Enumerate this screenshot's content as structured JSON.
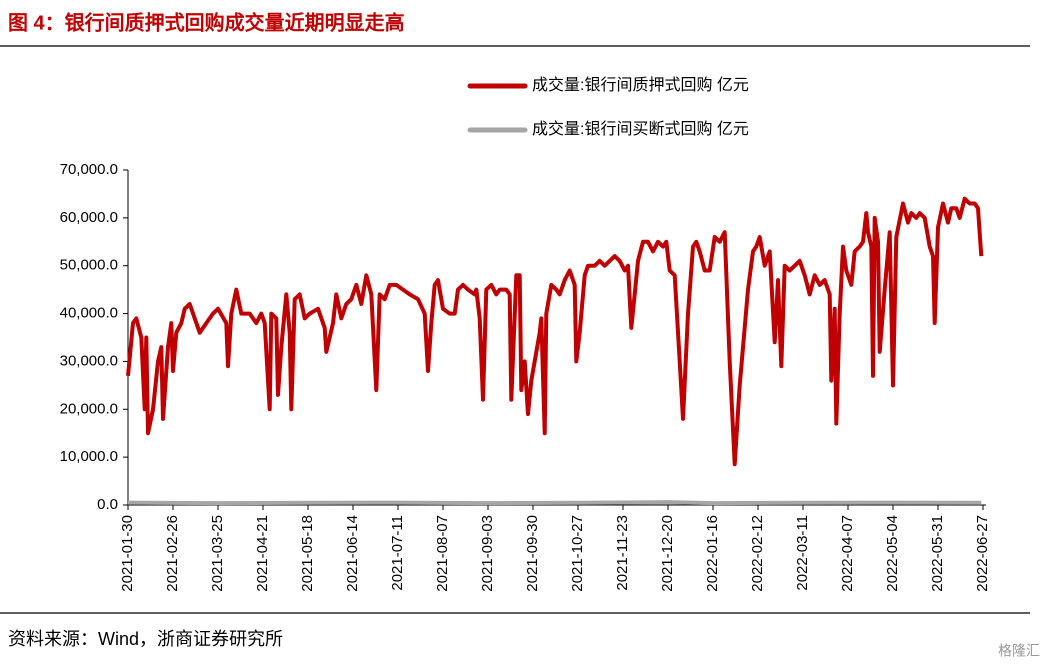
{
  "chart_data": {
    "type": "line",
    "title": "图 4：银行间质押式回购成交量近期明显走高",
    "source": "资料来源：Wind，浙商证券研究所",
    "watermark": "格隆汇",
    "legend": "top-right",
    "xlim": [
      "2021-01-30",
      "2022-06-27"
    ],
    "xticks": [
      "2021-01-30",
      "2021-02-26",
      "2021-03-25",
      "2021-04-21",
      "2021-05-18",
      "2021-06-14",
      "2021-07-11",
      "2021-08-07",
      "2021-09-03",
      "2021-09-30",
      "2021-10-27",
      "2021-11-23",
      "2021-12-20",
      "2022-01-16",
      "2022-02-12",
      "2022-03-11",
      "2022-04-07",
      "2022-05-04",
      "2022-05-31",
      "2022-06-27"
    ],
    "ylim": [
      0,
      70000
    ],
    "yticks": [
      {
        "value": 0,
        "label": "0.0"
      },
      {
        "value": 10000,
        "label": "10,000.0"
      },
      {
        "value": 20000,
        "label": "20,000.0"
      },
      {
        "value": 30000,
        "label": "30,000.0"
      },
      {
        "value": 40000,
        "label": "40,000.0"
      },
      {
        "value": 50000,
        "label": "50,000.0"
      },
      {
        "value": 60000,
        "label": "60,000.0"
      },
      {
        "value": 70000,
        "label": "70,000.0"
      }
    ],
    "series": [
      {
        "name": "成交量:银行间质押式回购 亿元",
        "color": "#c00000",
        "x": [
          "2021-01-30",
          "2021-02-02",
          "2021-02-04",
          "2021-02-07",
          "2021-02-09",
          "2021-02-10",
          "2021-02-11",
          "2021-02-14",
          "2021-02-17",
          "2021-02-19",
          "2021-02-20",
          "2021-02-23",
          "2021-02-25",
          "2021-02-26",
          "2021-02-28",
          "2021-03-03",
          "2021-03-05",
          "2021-03-08",
          "2021-03-11",
          "2021-03-14",
          "2021-03-18",
          "2021-03-22",
          "2021-03-25",
          "2021-03-30",
          "2021-03-31",
          "2021-04-02",
          "2021-04-05",
          "2021-04-08",
          "2021-04-13",
          "2021-04-17",
          "2021-04-20",
          "2021-04-22",
          "2021-04-25",
          "2021-04-26",
          "2021-04-29",
          "2021-04-30",
          "2021-05-02",
          "2021-05-05",
          "2021-05-07",
          "2021-05-08",
          "2021-05-10",
          "2021-05-13",
          "2021-05-16",
          "2021-05-19",
          "2021-05-24",
          "2021-05-28",
          "2021-05-29",
          "2021-06-02",
          "2021-06-04",
          "2021-06-07",
          "2021-06-10",
          "2021-06-13",
          "2021-06-16",
          "2021-06-19",
          "2021-06-22",
          "2021-06-25",
          "2021-06-28",
          "2021-06-30",
          "2021-07-03",
          "2021-07-06",
          "2021-07-10",
          "2021-07-14",
          "2021-07-18",
          "2021-07-23",
          "2021-07-27",
          "2021-07-29",
          "2021-07-31",
          "2021-08-02",
          "2021-08-04",
          "2021-08-07",
          "2021-08-11",
          "2021-08-14",
          "2021-08-16",
          "2021-08-19",
          "2021-08-22",
          "2021-08-26",
          "2021-08-27",
          "2021-08-29",
          "2021-08-31",
          "2021-09-02",
          "2021-09-05",
          "2021-09-08",
          "2021-09-10",
          "2021-09-14",
          "2021-09-16",
          "2021-09-17",
          "2021-09-20",
          "2021-09-22",
          "2021-09-23",
          "2021-09-25",
          "2021-09-27",
          "2021-09-29",
          "2021-10-04",
          "2021-10-05",
          "2021-10-07",
          "2021-10-08",
          "2021-10-11",
          "2021-10-14",
          "2021-10-16",
          "2021-10-19",
          "2021-10-22",
          "2021-10-25",
          "2021-10-26",
          "2021-10-28",
          "2021-10-31",
          "2021-11-02",
          "2021-11-06",
          "2021-11-09",
          "2021-11-12",
          "2021-11-15",
          "2021-11-18",
          "2021-11-21",
          "2021-11-24",
          "2021-11-26",
          "2021-11-28",
          "2021-11-30",
          "2021-12-02",
          "2021-12-05",
          "2021-12-08",
          "2021-12-11",
          "2021-12-14",
          "2021-12-17",
          "2021-12-19",
          "2021-12-21",
          "2021-12-24",
          "2021-12-27",
          "2021-12-29",
          "2022-01-01",
          "2022-01-04",
          "2022-01-06",
          "2022-01-08",
          "2022-01-11",
          "2022-01-14",
          "2022-01-17",
          "2022-01-20",
          "2022-01-23",
          "2022-01-26",
          "2022-01-29",
          "2022-02-01",
          "2022-02-06",
          "2022-02-09",
          "2022-02-11",
          "2022-02-13",
          "2022-02-16",
          "2022-02-19",
          "2022-02-22",
          "2022-02-24",
          "2022-02-26",
          "2022-02-28",
          "2022-03-03",
          "2022-03-06",
          "2022-03-09",
          "2022-03-12",
          "2022-03-15",
          "2022-03-18",
          "2022-03-21",
          "2022-03-24",
          "2022-03-27",
          "2022-03-28",
          "2022-03-30",
          "2022-03-31",
          "2022-04-02",
          "2022-04-04",
          "2022-04-06",
          "2022-04-09",
          "2022-04-11",
          "2022-04-14",
          "2022-04-16",
          "2022-04-18",
          "2022-04-19",
          "2022-04-21",
          "2022-04-22",
          "2022-04-23",
          "2022-04-25",
          "2022-04-26",
          "2022-04-29",
          "2022-05-02",
          "2022-05-04",
          "2022-05-06",
          "2022-05-10",
          "2022-05-13",
          "2022-05-15",
          "2022-05-18",
          "2022-05-20",
          "2022-05-23",
          "2022-05-26",
          "2022-05-28",
          "2022-05-29",
          "2022-05-31",
          "2022-06-03",
          "2022-06-06",
          "2022-06-08",
          "2022-06-11",
          "2022-06-13",
          "2022-06-16",
          "2022-06-19",
          "2022-06-22",
          "2022-06-24",
          "2022-06-26"
        ],
        "values": [
          27000,
          38000,
          39000,
          35000,
          20000,
          35000,
          15000,
          20000,
          30000,
          33000,
          18000,
          33000,
          38000,
          28000,
          36000,
          38000,
          41000,
          42000,
          39000,
          36000,
          38000,
          40000,
          41000,
          38000,
          29000,
          40000,
          45000,
          40000,
          40000,
          38000,
          40000,
          38000,
          20000,
          40000,
          39000,
          23000,
          33000,
          44000,
          36000,
          20000,
          43000,
          44000,
          39000,
          40000,
          41000,
          37000,
          32000,
          38000,
          44000,
          39000,
          42000,
          43000,
          46000,
          42000,
          48000,
          44000,
          24000,
          44000,
          43000,
          46000,
          46000,
          45000,
          44000,
          43000,
          40000,
          28000,
          38000,
          46000,
          47000,
          41000,
          40000,
          40000,
          45000,
          46000,
          45000,
          44000,
          45000,
          39000,
          22000,
          45000,
          46000,
          44000,
          45000,
          45000,
          44000,
          22000,
          48000,
          48000,
          24000,
          30000,
          19000,
          26000,
          36000,
          39000,
          15000,
          40000,
          46000,
          45000,
          44000,
          47000,
          49000,
          46000,
          30000,
          36000,
          48000,
          50000,
          50000,
          51000,
          50000,
          51000,
          52000,
          51000,
          49000,
          50000,
          37000,
          44000,
          51000,
          55000,
          55000,
          53000,
          55000,
          54000,
          55000,
          49000,
          48000,
          30000,
          18000,
          40000,
          54000,
          55000,
          53000,
          49000,
          49000,
          56000,
          55000,
          57000,
          30000,
          8500,
          25000,
          45000,
          53000,
          54000,
          56000,
          50000,
          53000,
          34000,
          47000,
          29000,
          50000,
          49000,
          50000,
          51000,
          48000,
          44000,
          48000,
          46000,
          47000,
          44000,
          26000,
          41000,
          17000,
          40000,
          54000,
          49000,
          46000,
          53000,
          54000,
          55000,
          61000,
          57000,
          54000,
          27000,
          60000,
          55000,
          32000,
          45000,
          57000,
          25000,
          56000,
          63000,
          59000,
          61000,
          60000,
          61000,
          60000,
          54000,
          52000,
          38000,
          58000,
          63000,
          59000,
          62000,
          62000,
          60000,
          64000,
          63000,
          63000,
          62000,
          52000
        ]
      },
      {
        "name": "成交量:银行间买断式回购 亿元",
        "color": "#a6a6a6",
        "x": [
          "2021-01-30",
          "2021-03-25",
          "2021-05-18",
          "2021-07-11",
          "2021-09-03",
          "2021-10-27",
          "2021-12-20",
          "2022-01-16",
          "2022-03-11",
          "2022-05-04",
          "2022-06-26"
        ],
        "values": [
          500,
          400,
          450,
          500,
          400,
          450,
          600,
          400,
          450,
          500,
          450
        ]
      }
    ]
  }
}
